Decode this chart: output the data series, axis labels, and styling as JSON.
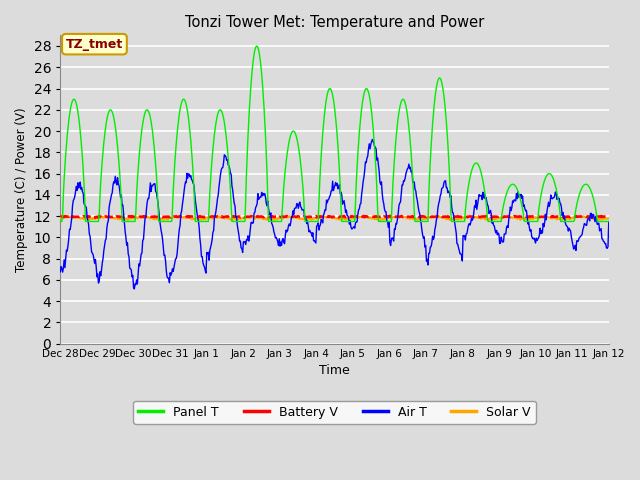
{
  "title": "Tonzi Tower Met: Temperature and Power",
  "xlabel": "Time",
  "ylabel": "Temperature (C) / Power (V)",
  "ylim": [
    0,
    29
  ],
  "yticks": [
    0,
    2,
    4,
    6,
    8,
    10,
    12,
    14,
    16,
    18,
    20,
    22,
    24,
    26,
    28
  ],
  "xtick_labels": [
    "Dec 28",
    "Dec 29",
    "Dec 30",
    "Dec 31",
    "Jan 1",
    "Jan 2",
    "Jan 3",
    "Jan 4",
    "Jan 5",
    "Jan 6",
    "Jan 7",
    "Jan 8",
    "Jan 9",
    "Jan 10",
    "Jan 11",
    "Jan 12"
  ],
  "background_color": "#dcdcdc",
  "plot_bg_color": "#dcdcdc",
  "grid_color": "#ffffff",
  "panel_t_color": "#00ee00",
  "battery_v_color": "#ff0000",
  "air_t_color": "#0000ff",
  "solar_v_color": "#ffa500",
  "legend_label": "TZ_tmet",
  "legend_bg": "#ffffcc",
  "legend_border": "#cc9900",
  "legend_text_color": "#880000"
}
